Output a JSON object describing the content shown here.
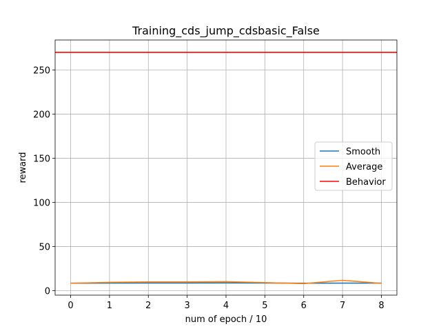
{
  "chart_data": {
    "type": "line",
    "title": "Training_cds_jump_cdsbasic_False",
    "xlabel": "num of epoch / 10",
    "ylabel": "reward",
    "xlim": [
      -0.4,
      8.4
    ],
    "ylim": [
      -5,
      284
    ],
    "xticks": [
      0,
      1,
      2,
      3,
      4,
      5,
      6,
      7,
      8
    ],
    "yticks": [
      0,
      50,
      100,
      150,
      200,
      250
    ],
    "grid": true,
    "legend_position": "center-right",
    "x": [
      0,
      1,
      2,
      3,
      4,
      5,
      6,
      7,
      8
    ],
    "series": [
      {
        "name": "Smooth",
        "color": "#1f77b4",
        "values": [
          8.5,
          8.6,
          8.7,
          8.7,
          8.8,
          8.7,
          8.5,
          8.6,
          8.6
        ]
      },
      {
        "name": "Average",
        "color": "#ff7f0e",
        "values": [
          8.5,
          9.5,
          10.0,
          10.0,
          10.3,
          9.2,
          8.0,
          11.8,
          8.3
        ]
      },
      {
        "name": "Behavior",
        "color": "#ff0000",
        "hline": true,
        "value": 270
      }
    ]
  }
}
